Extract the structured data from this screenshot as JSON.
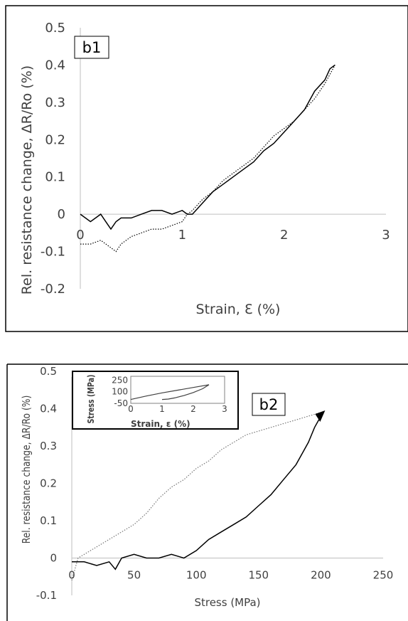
{
  "chart_data": [
    {
      "panel": "b1",
      "type": "line",
      "xlabel": "Strain, Ɛ (%)",
      "ylabel": "Rel. resistance change, ΔR/Ro (%)",
      "xlim": [
        0,
        3
      ],
      "ylim": [
        -0.2,
        0.5
      ],
      "xticks": [
        "0",
        "1",
        "2",
        "3"
      ],
      "yticks": [
        "0.5",
        "0.4",
        "0.3",
        "0.2",
        "0.1",
        "0",
        "-0.1",
        "-0.2"
      ],
      "grid": false,
      "series": [
        {
          "style": "solid",
          "x": [
            0,
            0.05,
            0.1,
            0.15,
            0.2,
            0.25,
            0.3,
            0.35,
            0.4,
            0.5,
            0.6,
            0.7,
            0.8,
            0.9,
            1.0,
            1.05,
            1.1,
            1.2,
            1.3,
            1.4,
            1.5,
            1.6,
            1.7,
            1.8,
            1.9,
            2.0,
            2.1,
            2.2,
            2.3,
            2.4,
            2.45,
            2.5
          ],
          "y": [
            0,
            -0.01,
            -0.02,
            -0.01,
            0,
            -0.02,
            -0.04,
            -0.02,
            -0.01,
            -0.01,
            0.0,
            0.01,
            0.01,
            0.0,
            0.01,
            0.0,
            0.0,
            0.03,
            0.06,
            0.08,
            0.1,
            0.12,
            0.14,
            0.17,
            0.19,
            0.22,
            0.25,
            0.28,
            0.33,
            0.36,
            0.39,
            0.4
          ]
        },
        {
          "style": "dotted",
          "x": [
            0,
            0.1,
            0.2,
            0.3,
            0.35,
            0.4,
            0.5,
            0.6,
            0.7,
            0.8,
            0.9,
            1.0,
            1.05,
            1.1,
            1.2,
            1.3,
            1.4,
            1.5,
            1.6,
            1.7,
            1.8,
            1.9,
            2.0,
            2.1,
            2.2,
            2.3,
            2.4,
            2.5
          ],
          "y": [
            -0.08,
            -0.08,
            -0.07,
            -0.09,
            -0.1,
            -0.08,
            -0.06,
            -0.05,
            -0.04,
            -0.04,
            -0.03,
            -0.02,
            0.0,
            0.01,
            0.04,
            0.06,
            0.09,
            0.11,
            0.13,
            0.15,
            0.18,
            0.21,
            0.23,
            0.25,
            0.28,
            0.31,
            0.35,
            0.4
          ]
        }
      ]
    },
    {
      "panel": "b2",
      "type": "line",
      "xlabel": "Stress (MPa)",
      "ylabel": "Rel. resistance change, ΔR/Ro (%)",
      "xlim": [
        0,
        250
      ],
      "ylim": [
        -0.1,
        0.5
      ],
      "xticks": [
        "0",
        "50",
        "100",
        "150",
        "200",
        "250"
      ],
      "yticks": [
        "0.5",
        "0.4",
        "0.3",
        "0.2",
        "0.1",
        "0",
        "-0.1"
      ],
      "grid": false,
      "series": [
        {
          "style": "solid",
          "x": [
            0,
            10,
            20,
            30,
            35,
            40,
            50,
            60,
            70,
            80,
            90,
            100,
            110,
            120,
            130,
            140,
            150,
            160,
            170,
            180,
            190,
            195,
            200
          ],
          "y": [
            -0.01,
            -0.01,
            -0.02,
            -0.01,
            -0.03,
            0.0,
            0.01,
            0.0,
            0.0,
            0.01,
            0.0,
            0.02,
            0.05,
            0.07,
            0.09,
            0.11,
            0.14,
            0.17,
            0.21,
            0.25,
            0.31,
            0.35,
            0.38
          ]
        },
        {
          "style": "dotted",
          "x": [
            0,
            5,
            10,
            20,
            30,
            40,
            50,
            60,
            70,
            80,
            90,
            100,
            110,
            120,
            130,
            140,
            150,
            160,
            170,
            180,
            190,
            200
          ],
          "y": [
            -0.06,
            0.0,
            0.01,
            0.03,
            0.05,
            0.07,
            0.09,
            0.12,
            0.16,
            0.19,
            0.21,
            0.24,
            0.26,
            0.29,
            0.31,
            0.33,
            0.34,
            0.35,
            0.36,
            0.37,
            0.38,
            0.39
          ]
        }
      ],
      "inset": {
        "type": "line",
        "xlabel": "Strain, ε (%)",
        "ylabel": "Stress (MPa)",
        "xlim": [
          0,
          3
        ],
        "ylim": [
          -50,
          300
        ],
        "xticks": [
          "0",
          "1",
          "2",
          "3"
        ],
        "yticks": [
          "250",
          "100",
          "-50"
        ],
        "loading": {
          "x": [
            0,
            0.5,
            1.0,
            1.5,
            2.0,
            2.5
          ],
          "y": [
            0,
            45,
            85,
            120,
            155,
            190
          ]
        },
        "unloading": {
          "x": [
            2.5,
            2.3,
            2.0,
            1.7,
            1.4,
            1.2,
            1.0
          ],
          "y": [
            190,
            140,
            90,
            50,
            20,
            5,
            0
          ]
        }
      }
    }
  ],
  "labels": {
    "b1": "b1",
    "b2": "b2"
  }
}
